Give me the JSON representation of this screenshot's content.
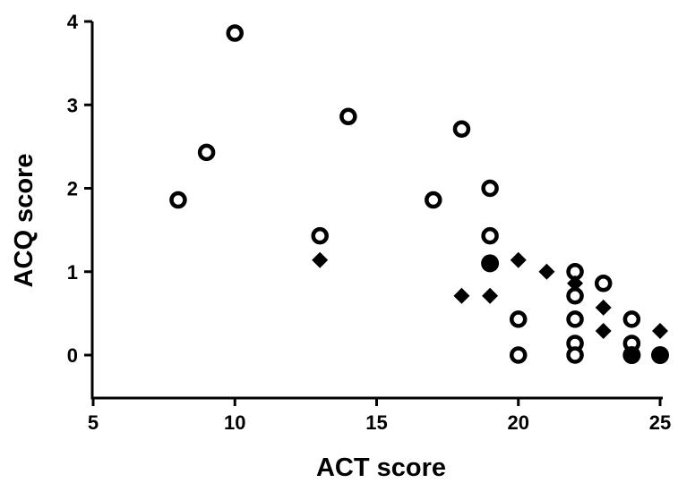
{
  "chart_data": {
    "type": "scatter",
    "title": "",
    "xlabel": "ACT score",
    "ylabel": "ACQ score",
    "xlim": [
      5,
      25
    ],
    "ylim": [
      -0.5,
      4
    ],
    "xticks": [
      "5",
      "10",
      "15",
      "20",
      "25"
    ],
    "yticks": [
      "0",
      "1",
      "2",
      "3",
      "4"
    ],
    "grid": false,
    "legend": "none",
    "series": [
      {
        "marker": "open-circle",
        "color": "#000000",
        "points": [
          [
            8,
            1.86
          ],
          [
            9,
            2.43
          ],
          [
            10,
            3.86
          ],
          [
            13,
            1.43
          ],
          [
            14,
            2.86
          ],
          [
            17,
            1.86
          ],
          [
            18,
            2.71
          ],
          [
            19,
            2.0
          ],
          [
            19,
            1.43
          ],
          [
            20,
            0.43
          ],
          [
            20,
            0.0
          ],
          [
            22,
            1.0
          ],
          [
            22,
            0.71
          ],
          [
            22,
            0.43
          ],
          [
            22,
            0.14
          ],
          [
            22,
            0.0
          ],
          [
            23,
            0.86
          ],
          [
            24,
            0.43
          ],
          [
            24,
            0.14
          ]
        ]
      },
      {
        "marker": "filled-circle",
        "color": "#000000",
        "points": [
          [
            19,
            1.1
          ],
          [
            24,
            0.0
          ],
          [
            25,
            0.0
          ]
        ]
      },
      {
        "marker": "filled-diamond",
        "color": "#000000",
        "points": [
          [
            13,
            1.14
          ],
          [
            18,
            0.71
          ],
          [
            19,
            0.71
          ],
          [
            20,
            1.14
          ],
          [
            21,
            1.0
          ],
          [
            22,
            0.86
          ],
          [
            23,
            0.57
          ],
          [
            23,
            0.29
          ],
          [
            25,
            0.29
          ]
        ]
      }
    ]
  }
}
